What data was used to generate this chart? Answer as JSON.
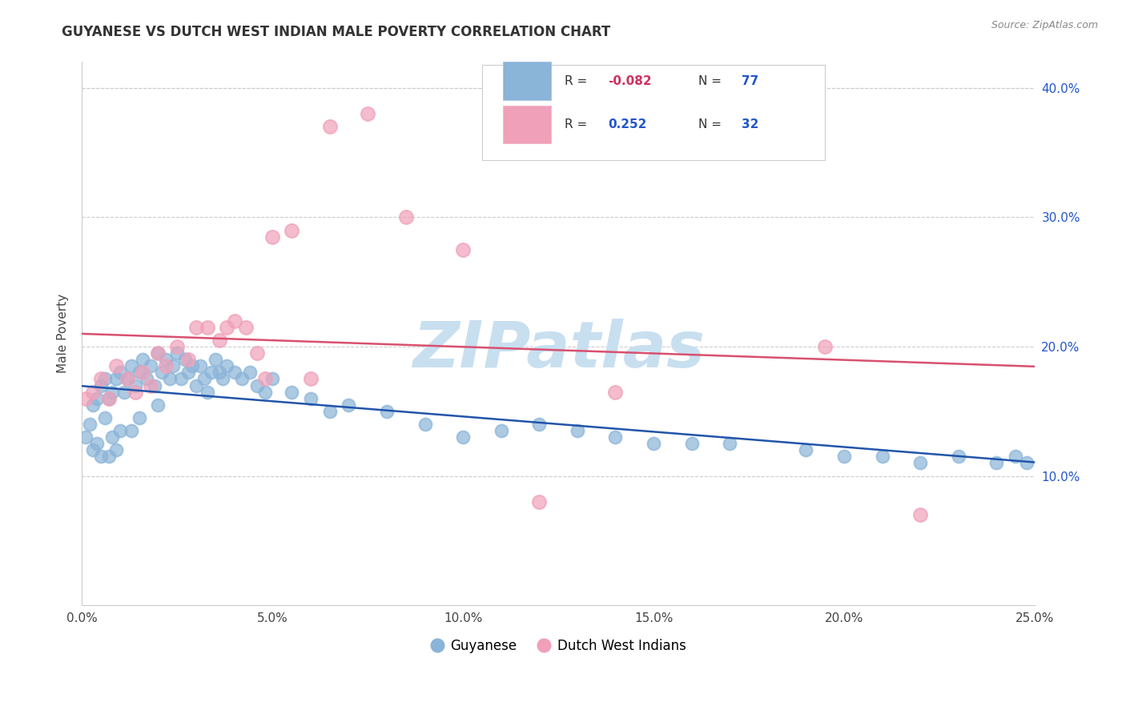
{
  "title": "GUYANESE VS DUTCH WEST INDIAN MALE POVERTY CORRELATION CHART",
  "source": "Source: ZipAtlas.com",
  "ylabel": "Male Poverty",
  "xlim": [
    0.0,
    0.25
  ],
  "ylim": [
    0.0,
    0.42
  ],
  "xtick_vals": [
    0.0,
    0.05,
    0.1,
    0.15,
    0.2,
    0.25
  ],
  "xtick_labels": [
    "0.0%",
    "5.0%",
    "10.0%",
    "15.0%",
    "20.0%",
    "25.0%"
  ],
  "ytick_vals": [
    0.1,
    0.2,
    0.3,
    0.4
  ],
  "ytick_labels": [
    "10.0%",
    "20.0%",
    "30.0%",
    "40.0%"
  ],
  "guyanese_color": "#8ab4d8",
  "dutch_color": "#f0a0b8",
  "guyanese_line_color": "#2255aa",
  "dutch_line_color": "#d85070",
  "watermark_text": "ZIPatlas",
  "watermark_color": "#c8dff0",
  "background_color": "#ffffff",
  "grid_color": "#cccccc",
  "r_guyanese": -0.082,
  "n_guyanese": 77,
  "r_dutch": 0.252,
  "n_dutch": 32,
  "guyanese_x": [
    0.001,
    0.002,
    0.003,
    0.003,
    0.004,
    0.004,
    0.005,
    0.005,
    0.006,
    0.006,
    0.007,
    0.007,
    0.008,
    0.008,
    0.009,
    0.009,
    0.01,
    0.01,
    0.011,
    0.012,
    0.013,
    0.013,
    0.014,
    0.015,
    0.015,
    0.016,
    0.017,
    0.018,
    0.019,
    0.02,
    0.02,
    0.021,
    0.022,
    0.023,
    0.024,
    0.025,
    0.026,
    0.027,
    0.028,
    0.029,
    0.03,
    0.031,
    0.032,
    0.033,
    0.034,
    0.035,
    0.036,
    0.037,
    0.038,
    0.04,
    0.042,
    0.044,
    0.046,
    0.048,
    0.05,
    0.055,
    0.06,
    0.065,
    0.07,
    0.08,
    0.09,
    0.1,
    0.11,
    0.12,
    0.13,
    0.14,
    0.15,
    0.16,
    0.17,
    0.19,
    0.2,
    0.21,
    0.22,
    0.23,
    0.24,
    0.245,
    0.248
  ],
  "guyanese_y": [
    0.13,
    0.14,
    0.155,
    0.12,
    0.16,
    0.125,
    0.17,
    0.115,
    0.145,
    0.175,
    0.16,
    0.115,
    0.165,
    0.13,
    0.175,
    0.12,
    0.18,
    0.135,
    0.165,
    0.175,
    0.185,
    0.135,
    0.17,
    0.18,
    0.145,
    0.19,
    0.175,
    0.185,
    0.17,
    0.195,
    0.155,
    0.18,
    0.19,
    0.175,
    0.185,
    0.195,
    0.175,
    0.19,
    0.18,
    0.185,
    0.17,
    0.185,
    0.175,
    0.165,
    0.18,
    0.19,
    0.18,
    0.175,
    0.185,
    0.18,
    0.175,
    0.18,
    0.17,
    0.165,
    0.175,
    0.165,
    0.16,
    0.15,
    0.155,
    0.15,
    0.14,
    0.13,
    0.135,
    0.14,
    0.135,
    0.13,
    0.125,
    0.125,
    0.125,
    0.12,
    0.115,
    0.115,
    0.11,
    0.115,
    0.11,
    0.115,
    0.11
  ],
  "dutch_x": [
    0.001,
    0.003,
    0.005,
    0.007,
    0.009,
    0.012,
    0.014,
    0.016,
    0.018,
    0.02,
    0.022,
    0.025,
    0.028,
    0.03,
    0.033,
    0.036,
    0.038,
    0.04,
    0.043,
    0.046,
    0.048,
    0.05,
    0.055,
    0.06,
    0.065,
    0.075,
    0.085,
    0.1,
    0.12,
    0.14,
    0.195,
    0.22
  ],
  "dutch_y": [
    0.16,
    0.165,
    0.175,
    0.16,
    0.185,
    0.175,
    0.165,
    0.18,
    0.17,
    0.195,
    0.185,
    0.2,
    0.19,
    0.215,
    0.215,
    0.205,
    0.215,
    0.22,
    0.215,
    0.195,
    0.175,
    0.285,
    0.29,
    0.175,
    0.37,
    0.38,
    0.3,
    0.275,
    0.08,
    0.165,
    0.2,
    0.07
  ]
}
